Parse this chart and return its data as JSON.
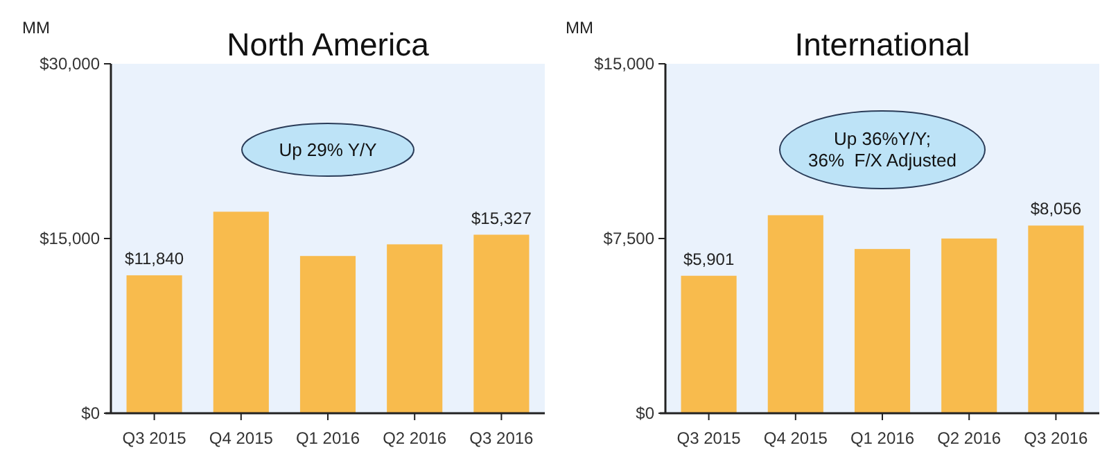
{
  "chart_data": [
    {
      "type": "bar",
      "title": "North America",
      "ylabel": "MM",
      "categories": [
        "Q3 2015",
        "Q4 2015",
        "Q1 2016",
        "Q2 2016",
        "Q3 2016"
      ],
      "values": [
        11840,
        17300,
        13500,
        14500,
        15327
      ],
      "value_labels": [
        "$11,840",
        null,
        null,
        null,
        "$15,327"
      ],
      "color": "#f8bb4d",
      "ylim": [
        0,
        30000
      ],
      "yticks": [
        {
          "value": 0,
          "label": "$0"
        },
        {
          "value": 15000,
          "label": "$15,000"
        },
        {
          "value": 30000,
          "label": "$30,000"
        }
      ],
      "grid": false,
      "annotations": [
        "Up 29% Y/Y"
      ]
    },
    {
      "type": "bar",
      "title": "International",
      "ylabel": "MM",
      "categories": [
        "Q3 2015",
        "Q4 2015",
        "Q1 2016",
        "Q2 2016",
        "Q3 2016"
      ],
      "values": [
        5901,
        8500,
        7050,
        7500,
        8056
      ],
      "value_labels": [
        "$5,901",
        null,
        null,
        null,
        "$8,056"
      ],
      "color": "#f8bb4d",
      "ylim": [
        0,
        15000
      ],
      "yticks": [
        {
          "value": 0,
          "label": "$0"
        },
        {
          "value": 7500,
          "label": "$7,500"
        },
        {
          "value": 15000,
          "label": "$15,000"
        }
      ],
      "grid": false,
      "annotations": [
        "Up 36%Y/Y;\n36%  F/X Adjusted"
      ]
    }
  ]
}
